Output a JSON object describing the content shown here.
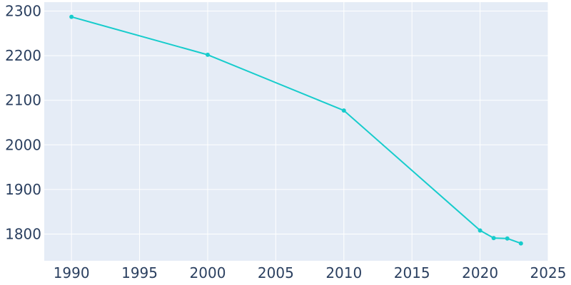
{
  "chart_data": {
    "type": "line",
    "title": "",
    "xlabel": "",
    "ylabel": "",
    "xlim": [
      1988,
      2025
    ],
    "ylim": [
      1740,
      2320
    ],
    "x_ticks": [
      1990,
      1995,
      2000,
      2005,
      2010,
      2015,
      2020,
      2025
    ],
    "y_ticks": [
      1800,
      1900,
      2000,
      2100,
      2200,
      2300
    ],
    "grid": true,
    "legend": "none",
    "series": [
      {
        "x": [
          1990,
          2000,
          2010,
          2020,
          2021,
          2022,
          2023
        ],
        "y": [
          2287,
          2202,
          2077,
          1808,
          1791,
          1790,
          1779
        ],
        "color": "#17cccc"
      }
    ],
    "colors": {
      "plot_background": "#e5ecf6",
      "grid": "#ffffff",
      "tick_text": "#2a3f5f"
    }
  }
}
